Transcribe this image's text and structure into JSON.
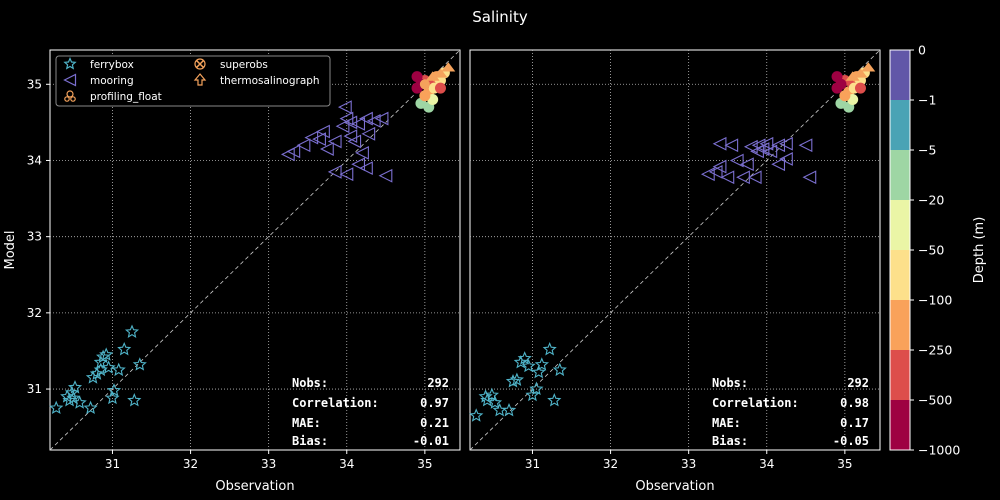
{
  "title": "Salinity",
  "chart_data": [
    {
      "type": "scatter",
      "panel": "left",
      "xlabel": "Observation",
      "ylabel": "Model",
      "xlim": [
        30.2,
        35.45
      ],
      "ylim": [
        30.2,
        35.45
      ],
      "xticks": [
        "31",
        "32",
        "33",
        "34",
        "35"
      ],
      "yticks": [
        "31",
        "32",
        "33",
        "34",
        "35"
      ],
      "grid": true,
      "legend_placement": "top-left",
      "reference_line": "1:1 dashed",
      "series": [
        {
          "name": "ferrybox",
          "marker": "star",
          "color": "#4fb3c8",
          "points": [
            [
              30.28,
              30.75
            ],
            [
              30.42,
              30.9
            ],
            [
              30.48,
              30.95
            ],
            [
              30.52,
              31.02
            ],
            [
              30.58,
              30.82
            ],
            [
              30.5,
              30.88
            ],
            [
              30.72,
              30.75
            ],
            [
              30.75,
              31.15
            ],
            [
              30.8,
              31.2
            ],
            [
              30.85,
              31.35
            ],
            [
              30.88,
              31.42
            ],
            [
              30.92,
              31.45
            ],
            [
              30.95,
              31.28
            ],
            [
              31.0,
              30.88
            ],
            [
              31.02,
              30.98
            ],
            [
              31.08,
              31.25
            ],
            [
              31.15,
              31.52
            ],
            [
              31.25,
              31.75
            ],
            [
              31.28,
              30.85
            ],
            [
              31.35,
              31.32
            ],
            [
              30.85,
              31.25
            ],
            [
              30.45,
              30.85
            ]
          ]
        },
        {
          "name": "mooring",
          "marker": "triangle-left",
          "color": "#7b6fd0",
          "points": [
            [
              33.25,
              34.08
            ],
            [
              33.32,
              34.12
            ],
            [
              33.45,
              34.2
            ],
            [
              33.55,
              34.3
            ],
            [
              33.65,
              34.28
            ],
            [
              33.75,
              34.15
            ],
            [
              33.85,
              34.25
            ],
            [
              33.95,
              34.45
            ],
            [
              33.98,
              34.7
            ],
            [
              34.0,
              34.55
            ],
            [
              34.05,
              34.5
            ],
            [
              34.15,
              34.48
            ],
            [
              34.25,
              34.55
            ],
            [
              34.35,
              34.52
            ],
            [
              34.45,
              34.55
            ],
            [
              34.1,
              34.25
            ],
            [
              34.2,
              34.1
            ],
            [
              34.15,
              33.95
            ],
            [
              34.25,
              33.9
            ],
            [
              34.5,
              33.8
            ],
            [
              33.85,
              33.85
            ],
            [
              34.0,
              33.82
            ],
            [
              34.28,
              34.35
            ],
            [
              33.7,
              34.38
            ],
            [
              34.05,
              34.32
            ]
          ]
        },
        {
          "name": "profiling_float",
          "marker": "float",
          "color": "#f5a35c",
          "points": [
            [
              34.9,
              34.95
            ],
            [
              35.0,
              35.05
            ],
            [
              35.05,
              34.9
            ],
            [
              35.1,
              35.0
            ],
            [
              35.15,
              35.1
            ],
            [
              35.2,
              35.05
            ],
            [
              34.95,
              34.75
            ],
            [
              35.05,
              34.7
            ],
            [
              35.1,
              34.8
            ],
            [
              34.9,
              35.1
            ],
            [
              35.0,
              34.85
            ],
            [
              35.12,
              34.95
            ],
            [
              35.2,
              34.95
            ],
            [
              35.25,
              35.15
            ],
            [
              34.95,
              35.0
            ]
          ]
        },
        {
          "name": "superobs",
          "marker": "plus-x",
          "color": "#f5a35c",
          "points": [
            [
              35.0,
              35.0
            ]
          ]
        },
        {
          "name": "thermosalinograph",
          "marker": "arrow-up",
          "color": "#f5a35c",
          "points": [
            [
              35.2,
              35.12
            ],
            [
              35.3,
              35.2
            ],
            [
              35.1,
              35.08
            ]
          ]
        }
      ],
      "stats": {
        "nobs": "292",
        "correlation": "0.97",
        "mae": "0.21",
        "bias": "-0.01"
      }
    },
    {
      "type": "scatter",
      "panel": "right",
      "xlabel": "Observation",
      "ylabel": "",
      "xlim": [
        30.2,
        35.45
      ],
      "ylim": [
        30.2,
        35.45
      ],
      "xticks": [
        "31",
        "32",
        "33",
        "34",
        "35"
      ],
      "grid": true,
      "reference_line": "1:1 dashed",
      "series": [
        {
          "name": "ferrybox",
          "marker": "star",
          "color": "#4fb3c8",
          "points": [
            [
              30.28,
              30.65
            ],
            [
              30.42,
              30.85
            ],
            [
              30.48,
              30.92
            ],
            [
              30.52,
              30.82
            ],
            [
              30.58,
              30.72
            ],
            [
              30.7,
              30.72
            ],
            [
              30.75,
              31.1
            ],
            [
              30.8,
              31.12
            ],
            [
              30.85,
              31.35
            ],
            [
              30.9,
              31.4
            ],
            [
              30.95,
              31.3
            ],
            [
              31.0,
              30.92
            ],
            [
              31.05,
              31.0
            ],
            [
              31.08,
              31.22
            ],
            [
              31.12,
              31.32
            ],
            [
              31.22,
              31.52
            ],
            [
              31.28,
              30.85
            ],
            [
              31.35,
              31.25
            ],
            [
              30.4,
              30.9
            ]
          ]
        },
        {
          "name": "mooring",
          "marker": "triangle-left",
          "color": "#7b6fd0",
          "points": [
            [
              33.25,
              33.82
            ],
            [
              33.35,
              33.85
            ],
            [
              33.4,
              33.92
            ],
            [
              33.4,
              34.22
            ],
            [
              33.55,
              34.2
            ],
            [
              33.62,
              34.0
            ],
            [
              33.75,
              33.95
            ],
            [
              33.8,
              34.18
            ],
            [
              33.88,
              34.12
            ],
            [
              33.9,
              34.2
            ],
            [
              33.95,
              34.15
            ],
            [
              34.0,
              34.22
            ],
            [
              34.05,
              34.12
            ],
            [
              34.15,
              34.2
            ],
            [
              34.25,
              34.22
            ],
            [
              34.5,
              34.2
            ],
            [
              34.15,
              33.95
            ],
            [
              34.25,
              34.02
            ],
            [
              34.55,
              33.78
            ],
            [
              33.7,
              33.78
            ],
            [
              33.85,
              33.78
            ],
            [
              33.5,
              33.78
            ]
          ]
        },
        {
          "name": "profiling_float",
          "marker": "float",
          "color": "#f5a35c",
          "points": [
            [
              34.9,
              34.95
            ],
            [
              35.0,
              35.05
            ],
            [
              35.05,
              34.9
            ],
            [
              35.1,
              35.0
            ],
            [
              35.15,
              35.1
            ],
            [
              35.2,
              35.05
            ],
            [
              34.95,
              34.75
            ],
            [
              35.05,
              34.7
            ],
            [
              35.1,
              34.8
            ],
            [
              34.9,
              35.1
            ],
            [
              35.0,
              34.85
            ],
            [
              35.12,
              34.95
            ],
            [
              35.2,
              34.95
            ],
            [
              35.25,
              35.15
            ],
            [
              34.95,
              35.0
            ]
          ]
        },
        {
          "name": "thermosalinograph",
          "marker": "arrow-up",
          "color": "#f5a35c",
          "points": [
            [
              35.2,
              35.12
            ],
            [
              35.3,
              35.2
            ],
            [
              35.1,
              35.08
            ]
          ]
        }
      ],
      "stats": {
        "nobs": "292",
        "correlation": "0.98",
        "mae": "0.17",
        "bias": "-0.05"
      }
    }
  ],
  "stat_labels": {
    "nobs": "Nobs:",
    "correlation": "Correlation:",
    "mae": "MAE:",
    "bias": "Bias:"
  },
  "colorbar": {
    "label": "Depth (m)",
    "ticks": [
      "0",
      "−1",
      "−5",
      "−20",
      "−50",
      "−100",
      "−250",
      "−500",
      "−1000"
    ],
    "colors": [
      "#6157a8",
      "#4aa3b5",
      "#9ed6a4",
      "#eaf5a6",
      "#fde08b",
      "#f9a25a",
      "#dd4e4b",
      "#9e0142"
    ]
  }
}
